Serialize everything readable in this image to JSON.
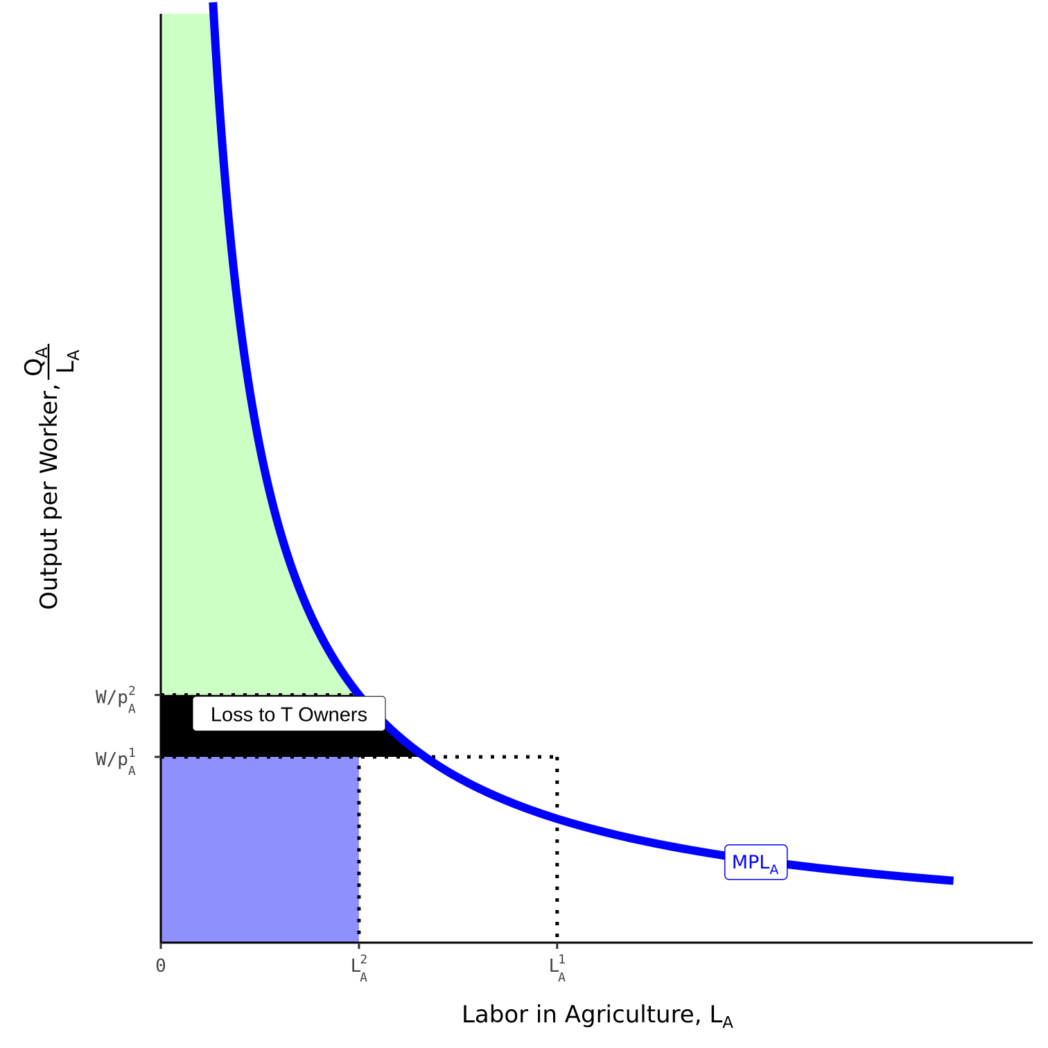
{
  "chart_data": {
    "type": "area",
    "xlabel": {
      "main": "Labor in Agriculture, L",
      "sub": "A"
    },
    "ylabel": {
      "prefix": "Output per Worker, ",
      "num_main": "Q",
      "num_sub": "A",
      "den_main": "L",
      "den_sub": "A"
    },
    "xlim": [
      0,
      11
    ],
    "ylim": [
      0,
      12
    ],
    "x_ticks": [
      {
        "value": 0,
        "main": "0",
        "sub": "",
        "sup": ""
      },
      {
        "value": 2.5,
        "main": "L",
        "sub": "A",
        "sup": "2"
      },
      {
        "value": 5,
        "main": "L",
        "sub": "A",
        "sup": "1"
      }
    ],
    "y_ticks": [
      {
        "value": 3.2,
        "main": "W/p",
        "sub": "A",
        "sup": "2"
      },
      {
        "value": 2.4,
        "main": "W/p",
        "sub": "A",
        "sup": "1"
      }
    ],
    "series": [
      {
        "name": "MPL",
        "label_main": "MPL",
        "label_sub": "A",
        "formula": "y = 8 / x",
        "x_range": [
          0.2,
          10
        ],
        "label_x": 7.5,
        "color": "#0000ff"
      }
    ],
    "regions": [
      {
        "kind": "green_surplus",
        "color": "#ccffc4",
        "note": "area under MPL above W/p2 from 0 to L2"
      },
      {
        "kind": "black_loss",
        "color": "#000000",
        "note": "area under MPL between W/p1 and W/p2"
      },
      {
        "kind": "purple_wages",
        "color": "#8f8ffe",
        "note": "rectangle 0..L2 by 0..W/p1"
      }
    ],
    "annotations": [
      {
        "text": "Loss to T Owners",
        "x": 1.6,
        "y": 2.95
      }
    ],
    "grid": false,
    "legend": "none"
  }
}
